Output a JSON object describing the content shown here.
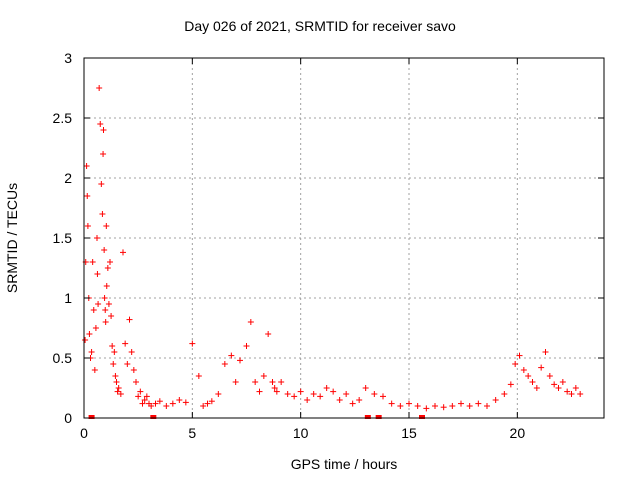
{
  "chart_data": {
    "type": "scatter",
    "title": "Day 026 of 2021, SRMTID for receiver savo",
    "xlabel": "GPS time / hours",
    "ylabel": "SRMTID / TECUs",
    "xlim": [
      0,
      24
    ],
    "ylim": [
      0,
      3
    ],
    "xticks": [
      0,
      5,
      10,
      15,
      20
    ],
    "yticks": [
      0,
      0.5,
      1,
      1.5,
      2,
      2.5,
      3
    ],
    "ytick_labels": [
      "0",
      "0.5",
      "1",
      "1.5",
      "2",
      "2.5",
      "3"
    ],
    "grid": true,
    "marker": "+",
    "color": "#ff0000",
    "zero_markers_x": [
      0.35,
      3.2,
      13.1,
      13.6,
      15.6
    ],
    "series": [
      {
        "name": "SRMTID",
        "x": [
          0.05,
          0.08,
          0.12,
          0.15,
          0.18,
          0.22,
          0.25,
          0.3,
          0.35,
          0.4,
          0.45,
          0.5,
          0.55,
          0.6,
          0.62,
          0.65,
          0.7,
          0.75,
          0.8,
          0.85,
          0.88,
          0.9,
          0.93,
          0.95,
          0.98,
          1.0,
          1.03,
          1.05,
          1.1,
          1.15,
          1.2,
          1.25,
          1.3,
          1.35,
          1.4,
          1.45,
          1.5,
          1.55,
          1.6,
          1.7,
          1.8,
          1.9,
          2.0,
          2.1,
          2.2,
          2.3,
          2.4,
          2.5,
          2.6,
          2.7,
          2.8,
          2.9,
          3.0,
          3.1,
          3.3,
          3.5,
          3.8,
          4.1,
          4.4,
          4.7,
          5.0,
          5.3,
          5.5,
          5.7,
          5.9,
          6.2,
          6.5,
          6.8,
          7.0,
          7.2,
          7.5,
          7.7,
          7.9,
          8.1,
          8.3,
          8.5,
          8.7,
          8.8,
          8.9,
          9.1,
          9.4,
          9.7,
          10.0,
          10.3,
          10.6,
          10.9,
          11.2,
          11.5,
          11.8,
          12.1,
          12.4,
          12.7,
          13.0,
          13.4,
          13.8,
          14.2,
          14.6,
          15.0,
          15.4,
          15.8,
          16.2,
          16.6,
          17.0,
          17.4,
          17.8,
          18.2,
          18.6,
          19.0,
          19.4,
          19.7,
          19.9,
          20.1,
          20.3,
          20.5,
          20.7,
          20.9,
          21.1,
          21.3,
          21.5,
          21.7,
          21.9,
          22.1,
          22.3,
          22.5,
          22.7,
          22.9
        ],
        "y": [
          0.65,
          1.3,
          2.1,
          1.85,
          1.6,
          1.0,
          0.7,
          0.5,
          0.55,
          1.3,
          0.9,
          0.4,
          0.75,
          1.5,
          1.2,
          0.95,
          2.75,
          2.45,
          1.95,
          1.7,
          2.2,
          2.4,
          1.4,
          1.0,
          0.9,
          0.8,
          1.6,
          1.1,
          1.25,
          0.95,
          1.3,
          0.85,
          0.6,
          0.45,
          0.55,
          0.35,
          0.3,
          0.22,
          0.25,
          0.2,
          1.38,
          0.62,
          0.45,
          0.82,
          0.55,
          0.4,
          0.3,
          0.18,
          0.22,
          0.12,
          0.15,
          0.18,
          0.12,
          0.1,
          0.12,
          0.14,
          0.1,
          0.12,
          0.15,
          0.13,
          0.62,
          0.35,
          0.1,
          0.12,
          0.14,
          0.2,
          0.45,
          0.52,
          0.3,
          0.48,
          0.6,
          0.8,
          0.3,
          0.22,
          0.35,
          0.7,
          0.3,
          0.25,
          0.22,
          0.3,
          0.2,
          0.18,
          0.22,
          0.15,
          0.2,
          0.18,
          0.25,
          0.22,
          0.15,
          0.2,
          0.12,
          0.15,
          0.25,
          0.2,
          0.18,
          0.12,
          0.1,
          0.12,
          0.1,
          0.08,
          0.1,
          0.09,
          0.1,
          0.12,
          0.1,
          0.12,
          0.1,
          0.15,
          0.2,
          0.28,
          0.45,
          0.52,
          0.4,
          0.35,
          0.3,
          0.25,
          0.42,
          0.55,
          0.35,
          0.28,
          0.25,
          0.3,
          0.22,
          0.2,
          0.25,
          0.2
        ]
      }
    ]
  }
}
